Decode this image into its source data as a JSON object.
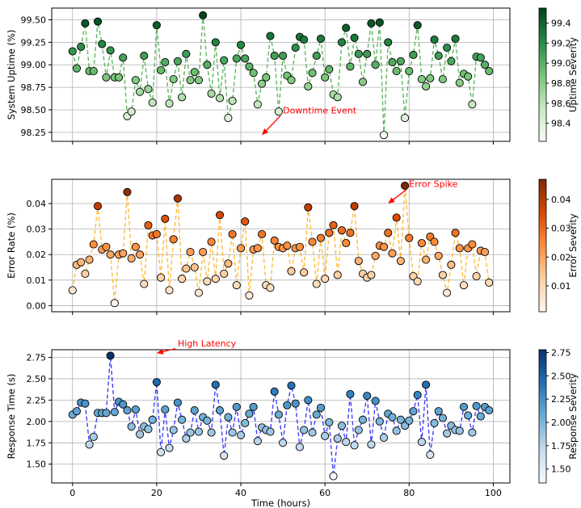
{
  "chart_data": [
    {
      "type": "scatter",
      "connected": true,
      "ylabel": "System Uptime (%)",
      "ylim": [
        98.15,
        99.63
      ],
      "yticks": [
        98.25,
        98.5,
        98.75,
        99.0,
        99.25,
        99.5
      ],
      "ytick_labels": [
        "98.25",
        "98.50",
        "98.75",
        "99.00",
        "99.25",
        "99.50"
      ],
      "line_color": "#2ca02c",
      "cmap": "Greens",
      "colorbar_label": "Uptime Severity",
      "cbar_range": [
        98.22,
        99.55
      ],
      "cbar_ticks": [
        98.4,
        98.6,
        98.8,
        99.0,
        99.2,
        99.4
      ],
      "cbar_tick_labels": [
        "98.4",
        "98.6",
        "98.8",
        "99.0",
        "99.2",
        "99.4"
      ],
      "annotation": {
        "text": "Downtime Event",
        "xy": [
          45,
          98.22
        ],
        "xytext": [
          50,
          98.46
        ]
      },
      "annotation_color": "#ff0000",
      "grid": true,
      "y": [
        99.15,
        98.96,
        99.2,
        99.46,
        98.93,
        98.93,
        99.48,
        99.23,
        98.86,
        99.16,
        98.86,
        98.86,
        99.08,
        98.43,
        98.48,
        98.83,
        98.7,
        99.1,
        98.73,
        98.58,
        99.44,
        98.94,
        99.03,
        98.57,
        98.84,
        99.04,
        98.64,
        99.12,
        98.83,
        98.92,
        98.83,
        99.55,
        99.0,
        98.68,
        99.25,
        98.63,
        99.05,
        98.41,
        98.6,
        99.07,
        99.22,
        99.07,
        98.98,
        98.91,
        98.56,
        98.79,
        98.86,
        99.32,
        99.1,
        98.48,
        99.1,
        98.88,
        98.83,
        99.19,
        99.31,
        99.28,
        98.76,
        98.91,
        99.1,
        99.29,
        98.86,
        98.95,
        98.67,
        98.64,
        99.25,
        99.41,
        98.98,
        99.3,
        99.12,
        98.81,
        99.12,
        99.46,
        99.0,
        99.47,
        98.22,
        99.25,
        99.03,
        98.93,
        99.04,
        98.41,
        98.93,
        99.11,
        99.44,
        98.84,
        98.76,
        98.85,
        99.28,
        99.1,
        98.84,
        99.19,
        99.04,
        99.29,
        98.8,
        98.9,
        98.87,
        98.56,
        99.09,
        99.08,
        99.0,
        98.93
      ]
    },
    {
      "type": "scatter",
      "connected": true,
      "ylabel": "Error Rate (%)",
      "ylim": [
        -0.0024,
        0.0495
      ],
      "yticks": [
        0.0,
        0.01,
        0.02,
        0.03,
        0.04
      ],
      "ytick_labels": [
        "0.00",
        "0.01",
        "0.02",
        "0.03",
        "0.04"
      ],
      "line_color": "#ffa500",
      "cmap": "Oranges",
      "colorbar_label": "Error Severity",
      "cbar_range": [
        0.001,
        0.047
      ],
      "cbar_ticks": [
        0.01,
        0.02,
        0.03,
        0.04
      ],
      "cbar_tick_labels": [
        "0.01",
        "0.02",
        "0.03",
        "0.04"
      ],
      "annotation": {
        "text": "Error Spike",
        "xy": [
          75,
          0.04
        ],
        "xytext": [
          80,
          0.0465
        ]
      },
      "annotation_color": "#ff0000",
      "grid": true,
      "y": [
        0.006,
        0.016,
        0.017,
        0.0125,
        0.018,
        0.024,
        0.039,
        0.022,
        0.023,
        0.02,
        0.001,
        0.02,
        0.0205,
        0.0445,
        0.0185,
        0.023,
        0.02,
        0.0085,
        0.0315,
        0.0275,
        0.028,
        0.011,
        0.034,
        0.006,
        0.026,
        0.042,
        0.0105,
        0.0145,
        0.021,
        0.015,
        0.005,
        0.021,
        0.0095,
        0.025,
        0.0105,
        0.0355,
        0.0125,
        0.0165,
        0.028,
        0.008,
        0.0225,
        0.033,
        0.004,
        0.022,
        0.0225,
        0.028,
        0.008,
        0.007,
        0.0255,
        0.023,
        0.0225,
        0.0235,
        0.0135,
        0.0225,
        0.023,
        0.013,
        0.0385,
        0.025,
        0.0085,
        0.0265,
        0.0105,
        0.0285,
        0.0315,
        0.012,
        0.0295,
        0.0245,
        0.0285,
        0.039,
        0.0175,
        0.0125,
        0.011,
        0.012,
        0.0195,
        0.0235,
        0.023,
        0.0285,
        0.0205,
        0.0345,
        0.0175,
        0.047,
        0.0265,
        0.0115,
        0.0095,
        0.0245,
        0.018,
        0.027,
        0.025,
        0.0195,
        0.012,
        0.005,
        0.016,
        0.0285,
        0.0225,
        0.008,
        0.0225,
        0.024,
        0.0115,
        0.0215,
        0.021,
        0.009
      ]
    },
    {
      "type": "scatter",
      "connected": true,
      "ylabel": "Response Time (s)",
      "xlabel": "Time (hours)",
      "ylim": [
        1.28,
        2.84
      ],
      "xlim": [
        -4.95,
        103.95
      ],
      "xticks": [
        0,
        20,
        40,
        60,
        80,
        100
      ],
      "xtick_labels": [
        "0",
        "20",
        "40",
        "60",
        "80",
        "100"
      ],
      "yticks": [
        1.5,
        1.75,
        2.0,
        2.25,
        2.5,
        2.75
      ],
      "ytick_labels": [
        "1.50",
        "1.75",
        "2.00",
        "2.25",
        "2.50",
        "2.75"
      ],
      "line_color": "#0000ff",
      "cmap": "Blues",
      "colorbar_label": "Response Severity",
      "cbar_range": [
        1.35,
        2.78
      ],
      "cbar_ticks": [
        1.5,
        1.75,
        2.0,
        2.25,
        2.5,
        2.75
      ],
      "cbar_tick_labels": [
        "1.50",
        "1.75",
        "2.00",
        "2.25",
        "2.50",
        "2.75"
      ],
      "annotation": {
        "text": "High Latency",
        "xy": [
          20,
          2.8
        ],
        "xytext": [
          25,
          2.88
        ]
      },
      "annotation_color": "#ff0000",
      "grid": true,
      "y": [
        2.08,
        2.12,
        2.22,
        2.21,
        1.73,
        1.82,
        2.1,
        2.1,
        2.1,
        2.77,
        2.11,
        2.23,
        2.2,
        2.13,
        1.94,
        2.14,
        1.85,
        1.94,
        1.91,
        2.02,
        2.46,
        1.64,
        2.14,
        1.69,
        1.9,
        2.22,
        2.02,
        1.8,
        1.87,
        2.13,
        1.88,
        2.05,
        2.01,
        1.87,
        2.43,
        2.13,
        1.6,
        2.05,
        1.87,
        2.17,
        1.84,
        1.98,
        2.09,
        2.17,
        1.77,
        1.93,
        1.9,
        1.88,
        2.35,
        2.08,
        1.75,
        2.19,
        2.42,
        2.21,
        1.7,
        1.9,
        2.25,
        1.87,
        2.08,
        2.16,
        1.83,
        1.99,
        1.36,
        1.8,
        1.95,
        1.76,
        2.32,
        1.72,
        1.9,
        2.02,
        2.3,
        1.73,
        2.24,
        2.0,
        1.81,
        2.09,
        2.05,
        1.89,
        2.02,
        1.95,
        2.01,
        2.12,
        2.31,
        1.76,
        2.43,
        1.61,
        1.98,
        2.12,
        2.04,
        1.86,
        1.95,
        1.9,
        1.89,
        2.17,
        2.07,
        1.87,
        2.18,
        2.06,
        2.17,
        2.13
      ]
    }
  ]
}
